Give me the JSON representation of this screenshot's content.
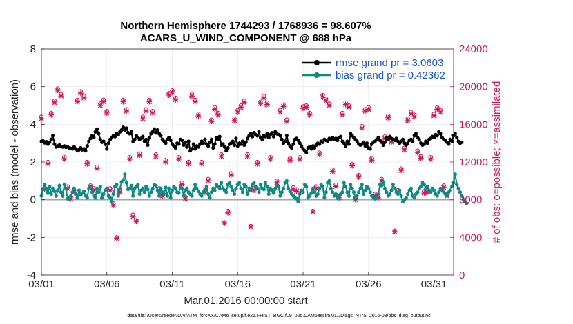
{
  "colors": {
    "rmse": "#000000",
    "bias": "#0e8a86",
    "obs": "#d4145a",
    "legend_text": "#1453e6",
    "zero_line": "#a6a6a6",
    "grid": "#e6e6e6"
  },
  "chart_data": {
    "type": "line",
    "title": "Northern Hemisphere 1744293 / 1768936 = 98.607%",
    "subtitle": "ACARS_U_WIND_COMPONENT @ 688 hPa",
    "xlabel": "Mar.01,2016 00:00:00 start",
    "ylabel": "rmse and bias (model - observation)",
    "y2label": "# of obs: o=possible; ×=assimilated",
    "xlim": [
      0,
      31.5
    ],
    "ylim": [
      -4,
      8
    ],
    "y2lim": [
      0,
      24000
    ],
    "xticks": [
      0,
      5,
      10,
      15,
      20,
      25,
      30
    ],
    "xtick_labels": [
      "03/01",
      "03/06",
      "03/11",
      "03/16",
      "03/21",
      "03/26",
      "03/31"
    ],
    "yticks": [
      -4,
      -2,
      0,
      2,
      4,
      6,
      8
    ],
    "ytick_labels": [
      "-4",
      "-2",
      "0",
      "2",
      "4",
      "6",
      "8"
    ],
    "y2ticks": [
      0,
      4000,
      8000,
      12000,
      16000,
      20000,
      24000
    ],
    "y2tick_labels": [
      "0",
      "4000",
      "8000",
      "12000",
      "16000",
      "20000",
      "24000"
    ],
    "legend_position": "top-right",
    "x_step_days": 0.125,
    "series": [
      {
        "name": "rmse grand pr = 3.0603",
        "axis": "left",
        "values": [
          3.1,
          3.12,
          3.02,
          3.08,
          2.95,
          3.05,
          3.2,
          3.4,
          2.95,
          2.8,
          2.85,
          2.9,
          2.82,
          2.8,
          2.85,
          2.78,
          2.8,
          2.75,
          2.72,
          2.7,
          2.8,
          2.7,
          2.6,
          2.65,
          2.75,
          2.65,
          2.7,
          2.6,
          2.85,
          3.1,
          3.25,
          3.4,
          3.3,
          3.6,
          3.75,
          3.5,
          3.2,
          3.05,
          3.1,
          2.95,
          2.7,
          3.0,
          3.2,
          3.3,
          3.4,
          3.35,
          3.5,
          3.45,
          3.6,
          3.7,
          3.85,
          3.7,
          3.8,
          3.55,
          3.5,
          3.6,
          3.1,
          3.2,
          3.4,
          3.3,
          3.2,
          3.25,
          3.35,
          3.1,
          3.2,
          2.9,
          3.3,
          3.5,
          3.6,
          3.75,
          3.55,
          3.7,
          3.5,
          3.4,
          3.2,
          3.1,
          3.0,
          3.2,
          3.3,
          3.15,
          2.95,
          2.85,
          2.75,
          3.0,
          2.95,
          3.2,
          3.15,
          2.9,
          3.05,
          2.8,
          3.1,
          2.6,
          2.7,
          2.95,
          2.7,
          2.85,
          2.8,
          2.95,
          3.1,
          3.0,
          3.2,
          2.95,
          2.85,
          3.05,
          3.2,
          2.75,
          2.95,
          3.3,
          3.2,
          3.35,
          2.9,
          2.95,
          2.8,
          2.6,
          2.75,
          2.95,
          3.0,
          3.1,
          2.9,
          3.25,
          2.85,
          3.0,
          2.95,
          3.1,
          2.9,
          3.05,
          3.25,
          3.4,
          3.5,
          3.35,
          3.55,
          3.45,
          3.4,
          3.6,
          3.3,
          3.2,
          3.4,
          3.35,
          3.5,
          3.3,
          3.45,
          3.55,
          3.35,
          3.6,
          3.5,
          3.45,
          3.4,
          3.2,
          3.0,
          3.1,
          3.4,
          3.0,
          2.85,
          2.75,
          2.95,
          3.2,
          3.25,
          3.15,
          3.0,
          2.85,
          2.7,
          2.6,
          2.5,
          2.75,
          2.8,
          2.7,
          2.85,
          2.75,
          2.9,
          3.0,
          2.95,
          3.1,
          3.05,
          3.2,
          3.15,
          3.1,
          3.25,
          3.2,
          3.3,
          3.2,
          3.25,
          3.15,
          3.3,
          3.35,
          3.1,
          3.0,
          2.85,
          3.1,
          2.95,
          3.5,
          3.4,
          3.3,
          3.2,
          3.1,
          2.95,
          2.9,
          2.95,
          3.05,
          2.85,
          3.0,
          2.75,
          2.7,
          2.95,
          3.05,
          3.1,
          3.2,
          3.3,
          3.15,
          3.05,
          2.9,
          3.05,
          3.3,
          3.2,
          3.35,
          3.25,
          3.2,
          3.15,
          3.25,
          3.1,
          3.0,
          3.1,
          3.2,
          3.0,
          2.9,
          3.0,
          3.15,
          3.2,
          3.1,
          3.4,
          3.5,
          3.3,
          3.2,
          3.0,
          2.9,
          2.95,
          3.1,
          3.0,
          3.2,
          3.25,
          3.35,
          3.3,
          3.45,
          3.4,
          3.6,
          3.5,
          3.3,
          3.2,
          3.15,
          3.05,
          2.95,
          3.2,
          3.1,
          3.4,
          3.5,
          3.3,
          3.1,
          3.0,
          3.05
        ]
      },
      {
        "name": "bias grand pr = 0.42362",
        "axis": "left",
        "values": [
          0.2,
          0.55,
          0.8,
          0.6,
          0.35,
          0.7,
          0.3,
          0.6,
          0.45,
          0.2,
          0.5,
          0.75,
          0.4,
          0.2,
          0.8,
          0.6,
          0.05,
          0.1,
          0.2,
          0.4,
          0.6,
          0.3,
          0.1,
          0.5,
          0.25,
          0.35,
          0.45,
          0.2,
          0.1,
          0.6,
          0.7,
          0.4,
          0.2,
          0.1,
          0.6,
          0.4,
          0.7,
          0.1,
          0.3,
          0.5,
          0.6,
          0.2,
          0.1,
          -0.1,
          0.3,
          0.7,
          0.8,
          0.2,
          0.6,
          0.95,
          1.05,
          1.35,
          0.9,
          0.55,
          0.6,
          0.75,
          0.2,
          0.6,
          0.7,
          0.8,
          0.3,
          0.5,
          0.6,
          0.4,
          0.7,
          0.55,
          0.2,
          0.4,
          0.6,
          0.8,
          0.75,
          0.5,
          0.2,
          0.6,
          0.4,
          0.3,
          0.65,
          0.2,
          0.6,
          0.1,
          0.5,
          0.7,
          0.6,
          0.4,
          0.35,
          0.7,
          0.6,
          0.2,
          0.5,
          0.6,
          0.4,
          0.3,
          0.2,
          0.5,
          0.8,
          0.6,
          0.45,
          0.3,
          0.2,
          0.4,
          0.55,
          0.7,
          0.3,
          0.1,
          0.4,
          0.6,
          0.5,
          0.8,
          0.7,
          0.6,
          0.9,
          0.6,
          0.5,
          0.4,
          0.8,
          0.9,
          0.7,
          0.5,
          0.3,
          0.6,
          0.8,
          0.9,
          0.6,
          0.4,
          0.8,
          0.7,
          0.3,
          0.6,
          0.5,
          0.8,
          0.9,
          0.7,
          0.6,
          0.4,
          0.8,
          0.6,
          0.55,
          0.9,
          0.7,
          0.3,
          0.6,
          0.5,
          0.4,
          0.6,
          0.8,
          0.7,
          0.2,
          0.4,
          0.6,
          0.9,
          1.0,
          0.6,
          0.45,
          0.3,
          0.2,
          0.1,
          0.05,
          -0.1,
          0.3,
          0.5,
          0.4,
          0.8,
          0.7,
          0.1,
          0.2,
          0.35,
          0.6,
          0.4,
          0.2,
          0.3,
          0.6,
          0.8,
          0.7,
          0.1,
          0.4,
          0.9,
          1.0,
          0.6,
          0.4,
          0.2,
          0.3,
          0.1,
          0.2,
          0.3,
          0.4,
          0.9,
          0.7,
          0.4,
          0.2,
          0.8,
          0.6,
          0.4,
          0.1,
          0.2,
          0.4,
          0.6,
          0.8,
          0.3,
          0.5,
          0.7,
          0.6,
          0.4,
          0.2,
          0.1,
          0.05,
          0.1,
          0.3,
          0.8,
          0.75,
          0.95,
          0.6,
          0.4,
          0.2,
          0.3,
          0.5,
          0.8,
          0.6,
          0.4,
          0.3,
          0.5,
          0.2,
          -0.1,
          0.0,
          0.1,
          0.3,
          0.5,
          0.6,
          0.2,
          0.1,
          0.3,
          0.4,
          0.6,
          0.7,
          0.9,
          0.8,
          0.6,
          0.7,
          0.5,
          0.4,
          0.6,
          0.5,
          0.3,
          0.2,
          0.4,
          0.6,
          0.5,
          0.4,
          0.3,
          0.2,
          0.4,
          0.5,
          0.7,
          0.9,
          1.35,
          0.8,
          0.6,
          0.4,
          0.2,
          0.0,
          -0.1,
          -0.2
        ]
      },
      {
        "name": "# of obs possible (o) and assimilated (×)",
        "axis": "right",
        "x": [
          0.0,
          0.25,
          0.5,
          0.75,
          1.0,
          1.25,
          1.5,
          1.75,
          2.0,
          2.25,
          2.5,
          2.75,
          3.0,
          3.25,
          3.5,
          3.75,
          4.0,
          4.25,
          4.5,
          4.75,
          5.0,
          5.25,
          5.5,
          5.75,
          6.0,
          6.25,
          6.5,
          6.75,
          7.0,
          7.25,
          7.5,
          7.75,
          8.0,
          8.25,
          8.5,
          8.75,
          9.0,
          9.25,
          9.5,
          9.75,
          10.0,
          10.25,
          10.5,
          10.75,
          11.0,
          11.25,
          11.5,
          11.75,
          12.0,
          12.25,
          12.5,
          12.75,
          13.0,
          13.25,
          13.5,
          13.75,
          14.0,
          14.25,
          14.5,
          14.75,
          15.0,
          15.25,
          15.5,
          15.75,
          16.0,
          16.25,
          16.5,
          16.75,
          17.0,
          17.25,
          17.5,
          17.75,
          18.0,
          18.25,
          18.5,
          18.75,
          19.0,
          19.25,
          19.5,
          19.75,
          20.0,
          20.25,
          20.5,
          20.75,
          21.0,
          21.25,
          21.5,
          21.75,
          22.0,
          22.25,
          22.5,
          22.75,
          23.0,
          23.25,
          23.5,
          23.75,
          24.0,
          24.25,
          24.5,
          24.75,
          25.0,
          25.25,
          25.5,
          25.75,
          26.0,
          26.25,
          26.5,
          26.75,
          27.0,
          27.25,
          27.5,
          27.75,
          28.0,
          28.25,
          28.5,
          28.75,
          29.0,
          29.25,
          29.5,
          29.75,
          30.0,
          30.25,
          30.5,
          30.75,
          31.0
        ],
        "possible": [
          16800,
          9200,
          12000,
          17200,
          18500,
          19800,
          19200,
          12500,
          9400,
          8300,
          9000,
          18600,
          19500,
          19000,
          12000,
          9500,
          9200,
          11500,
          18200,
          18600,
          17400,
          9200,
          7600,
          4000,
          9000,
          18600,
          17600,
          12500,
          6400,
          5800,
          12900,
          16800,
          17600,
          18600,
          17400,
          12800,
          9200,
          8600,
          12200,
          19300,
          19600,
          18800,
          12500,
          9800,
          8300,
          12000,
          19200,
          18600,
          17100,
          12000,
          9000,
          10200,
          16500,
          17800,
          17200,
          12800,
          5600,
          6800,
          10800,
          16600,
          17500,
          18000,
          18500,
          12800,
          5200,
          9200,
          12000,
          18400,
          19000,
          18300,
          12500,
          9000,
          10000,
          17500,
          18100,
          16500,
          12400,
          9300,
          9100,
          12500,
          17900,
          18000,
          17200,
          6800,
          9400,
          13000,
          19100,
          18700,
          18200,
          11200,
          9600,
          8400,
          17200,
          18300,
          18000,
          11800,
          8200,
          10600,
          15800,
          17600,
          17800,
          12400,
          8600,
          8400,
          10200,
          14700,
          16900,
          14300,
          4700,
          9000,
          11300,
          13500,
          16600,
          17300,
          17000,
          13200,
          12600,
          8900,
          9000,
          12500,
          17100,
          17800,
          17500,
          9500,
          8600,
          14100,
          18600,
          18000,
          19400,
          16500,
          0
        ],
        "assimilated": [
          16600,
          9100,
          11800,
          17000,
          18300,
          19600,
          19000,
          12300,
          9200,
          8100,
          8800,
          18400,
          19300,
          18800,
          11800,
          9300,
          9000,
          11300,
          18000,
          18400,
          17200,
          9000,
          7400,
          3900,
          8800,
          18400,
          17400,
          12300,
          6200,
          5700,
          12700,
          16600,
          17400,
          18400,
          17200,
          12600,
          9000,
          8400,
          12000,
          19100,
          19400,
          18600,
          12300,
          9600,
          8100,
          11800,
          19000,
          18400,
          16900,
          11800,
          8800,
          10000,
          16300,
          17600,
          17000,
          12600,
          5500,
          6600,
          10600,
          16400,
          17300,
          17800,
          18300,
          12600,
          5100,
          9000,
          11800,
          18200,
          18800,
          18100,
          12300,
          8800,
          9800,
          17300,
          17900,
          16300,
          12200,
          9100,
          8900,
          12300,
          17700,
          17800,
          17000,
          6700,
          9200,
          12800,
          18900,
          18500,
          18000,
          11000,
          9400,
          8200,
          17000,
          18100,
          17800,
          11600,
          8000,
          10400,
          15600,
          17400,
          17600,
          12200,
          8400,
          8200,
          10000,
          14500,
          16700,
          14100,
          4600,
          8800,
          11100,
          13300,
          16400,
          17100,
          16800,
          13000,
          12400,
          8700,
          8800,
          12300,
          16900,
          17600,
          17300,
          9300,
          8400,
          13900,
          18400,
          17800,
          19200,
          16300,
          0
        ]
      }
    ]
  },
  "footer": {
    "data_file": "data file: /Users/raeder/DAI/ATM_forcXX/CAM6_setup/f.e21.FHIST_BGC.f09_025.CAM6assim.011/Diags_NTrS_2016-03/obs_diag_output.nc"
  }
}
